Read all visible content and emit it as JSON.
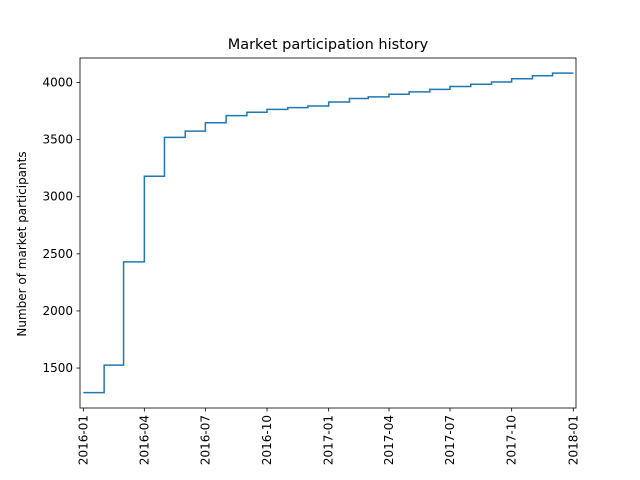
{
  "chart_data": {
    "type": "line",
    "drawstyle": "steps-post",
    "title": "Market participation history",
    "xlabel": "",
    "ylabel": "Number of market participants",
    "x_axis_type": "date",
    "xlim": [
      "2015-12-27",
      "2018-01-05"
    ],
    "ylim": [
      1150,
      4215
    ],
    "x_ticks": [
      "2016-01",
      "2016-04",
      "2016-07",
      "2016-10",
      "2017-01",
      "2017-04",
      "2017-07",
      "2017-10",
      "2018-01"
    ],
    "y_ticks": [
      1500,
      2000,
      2500,
      3000,
      3500,
      4000
    ],
    "grid": false,
    "legend": "none",
    "series": [
      {
        "color": "#1f77b4",
        "x": [
          "2016-01-01",
          "2016-02-01",
          "2016-03-01",
          "2016-04-01",
          "2016-05-01",
          "2016-06-01",
          "2016-07-01",
          "2016-08-01",
          "2016-09-01",
          "2016-10-01",
          "2016-11-01",
          "2016-12-01",
          "2017-01-01",
          "2017-02-01",
          "2017-03-01",
          "2017-04-01",
          "2017-05-01",
          "2017-06-01",
          "2017-07-01",
          "2017-08-01",
          "2017-09-01",
          "2017-10-01",
          "2017-11-01",
          "2017-12-01",
          "2018-01-01"
        ],
        "y": [
          1285,
          1525,
          2430,
          3180,
          3520,
          3575,
          3648,
          3710,
          3740,
          3765,
          3780,
          3795,
          3830,
          3860,
          3875,
          3898,
          3918,
          3940,
          3965,
          3985,
          4005,
          4033,
          4060,
          4083,
          4083
        ]
      }
    ]
  }
}
